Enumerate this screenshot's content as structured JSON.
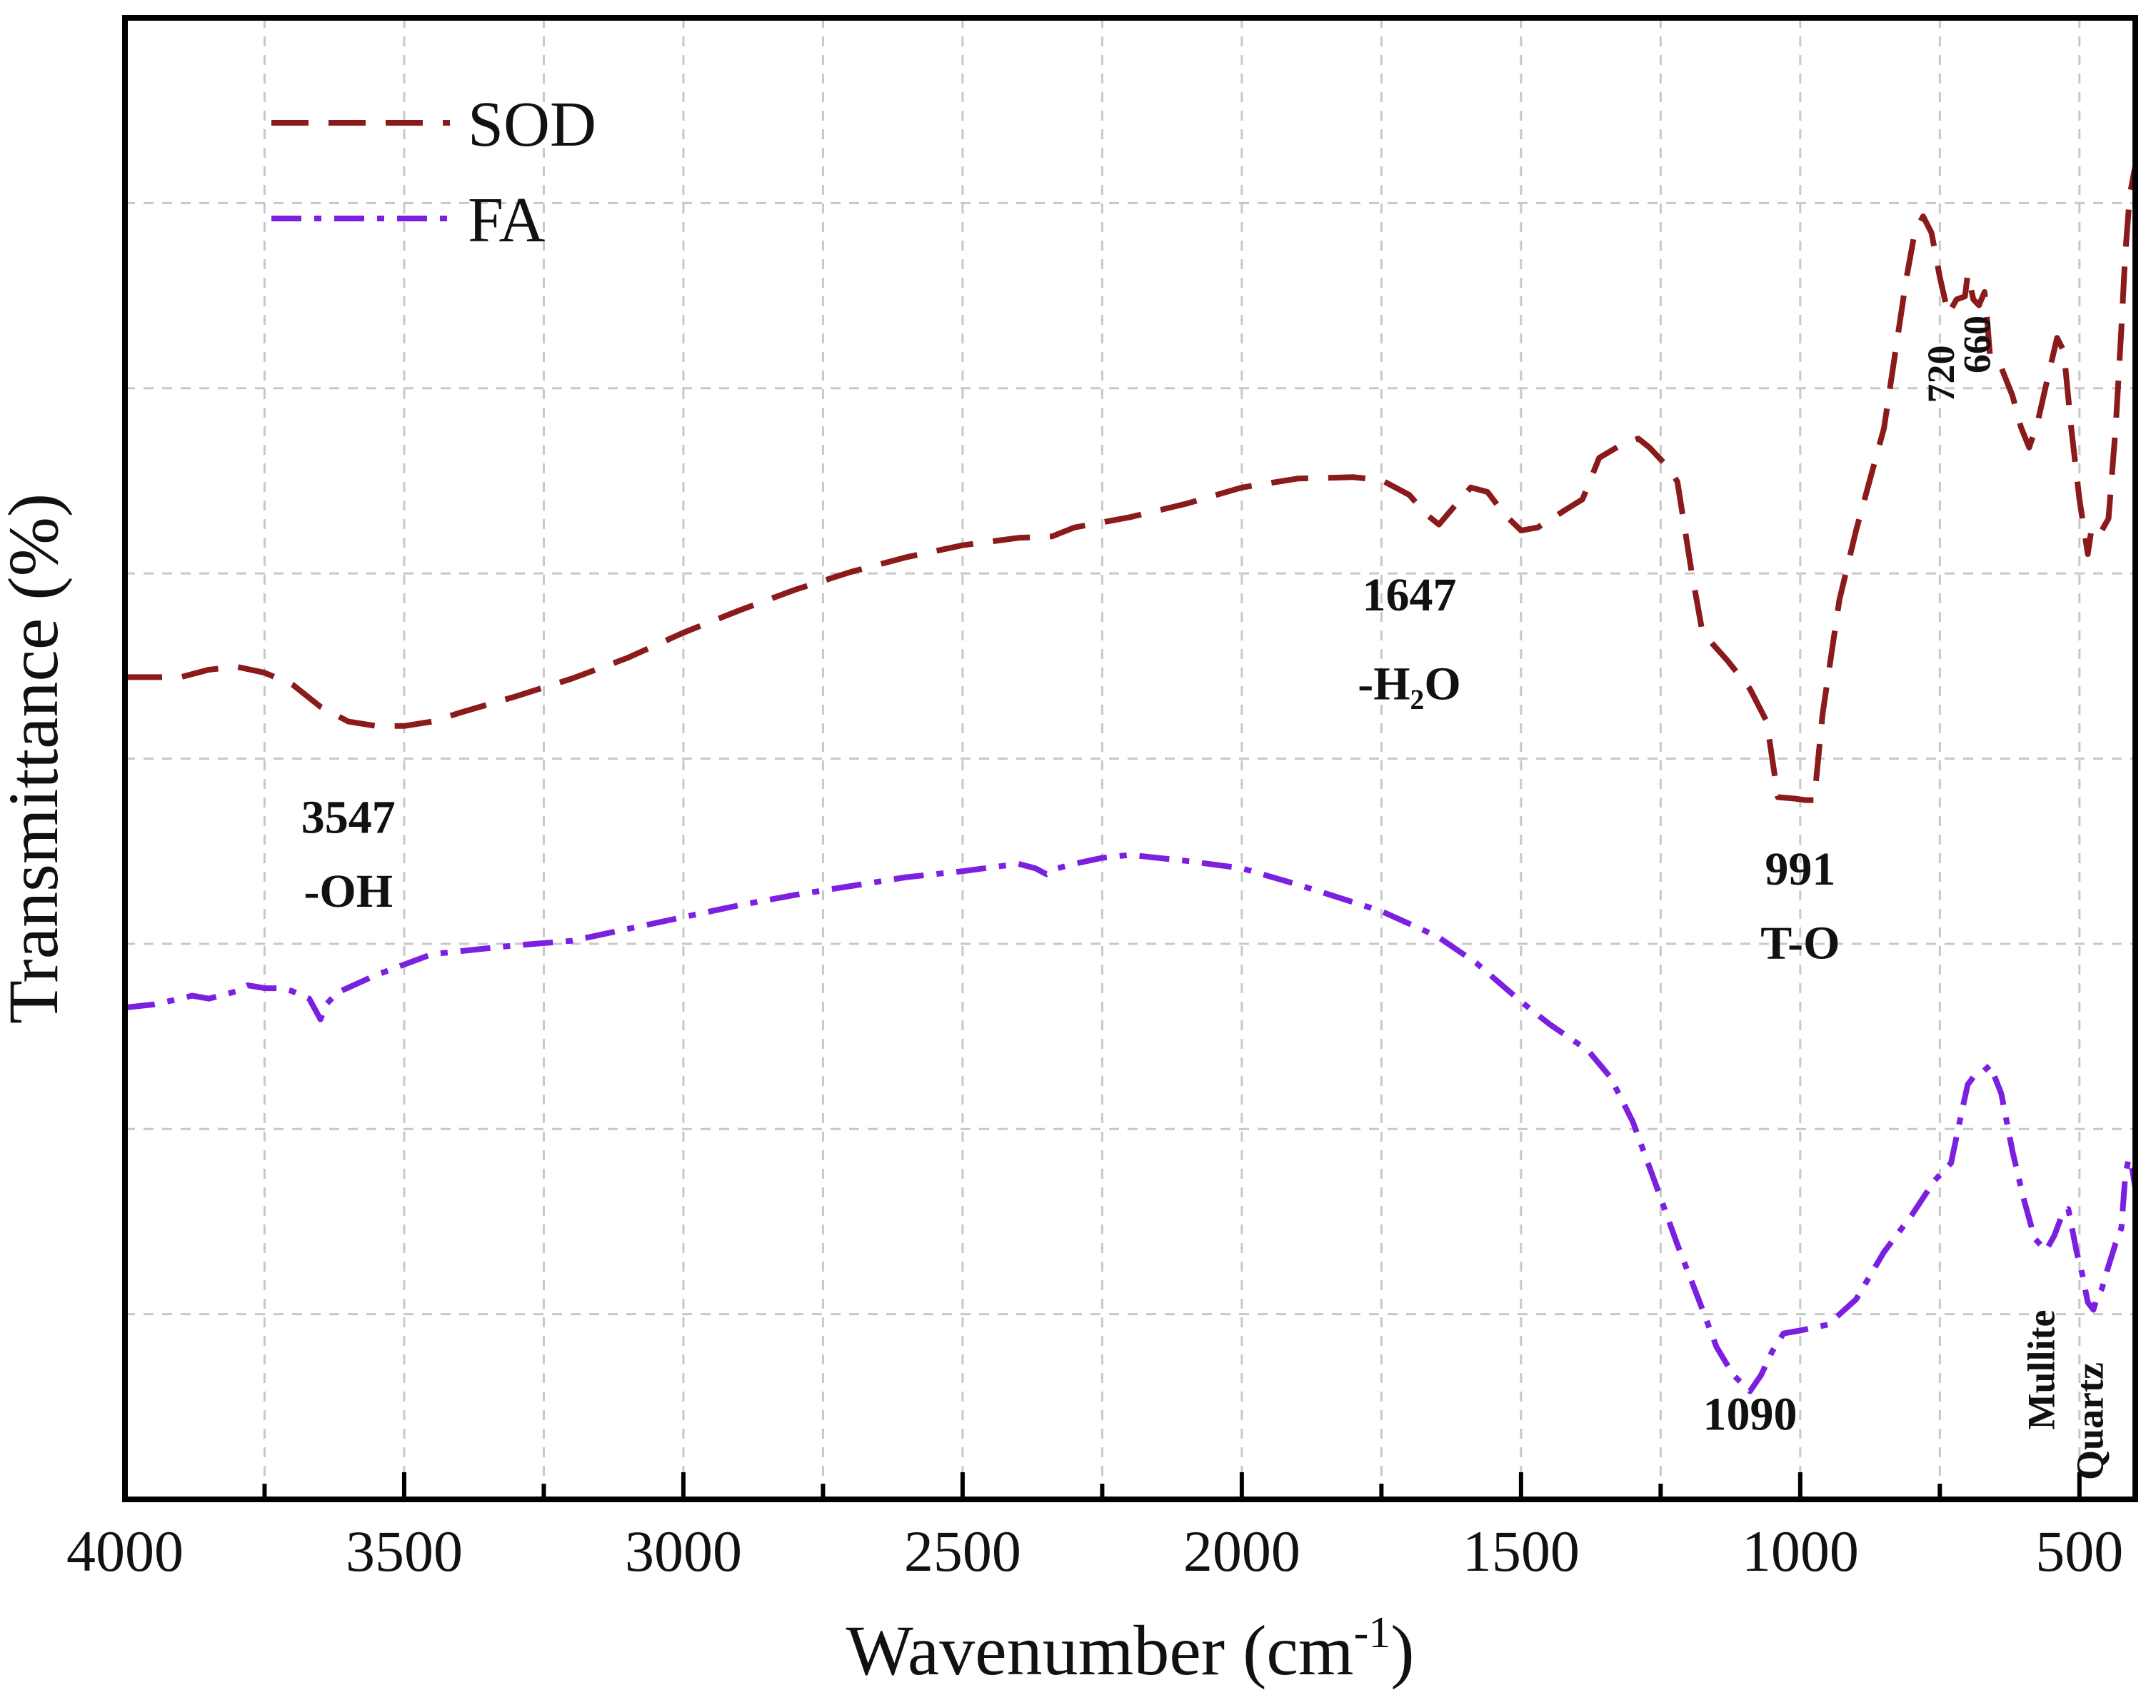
{
  "chart_data": {
    "type": "line",
    "title": "",
    "xlabel": "Wavenumber",
    "xlabel_unit_base": "cm",
    "xlabel_unit_exp": "-1",
    "ylabel": "Transmittance (%)",
    "xlim": [
      4000,
      400
    ],
    "ylim": [
      0,
      100
    ],
    "x_reversed": true,
    "grid": true,
    "legend_position": "top-left",
    "x_ticks": [
      "4000",
      "3500",
      "3000",
      "2500",
      "2000",
      "1500",
      "1000",
      "500"
    ],
    "x_tick_values": [
      4000,
      3500,
      3000,
      2500,
      2000,
      1500,
      1000,
      500
    ],
    "series": [
      {
        "name": "SOD",
        "color": "#8b1a1a",
        "dash": "dashed",
        "points": [
          [
            4000,
            55.5
          ],
          [
            3900,
            55.5
          ],
          [
            3850,
            56
          ],
          [
            3800,
            56.2
          ],
          [
            3750,
            55.8
          ],
          [
            3700,
            55
          ],
          [
            3650,
            53.5
          ],
          [
            3600,
            52.5
          ],
          [
            3550,
            52.2
          ],
          [
            3500,
            52.2
          ],
          [
            3450,
            52.5
          ],
          [
            3400,
            53.1
          ],
          [
            3300,
            54.2
          ],
          [
            3200,
            55.4
          ],
          [
            3100,
            56.8
          ],
          [
            3000,
            58.5
          ],
          [
            2900,
            60
          ],
          [
            2800,
            61.4
          ],
          [
            2700,
            62.6
          ],
          [
            2600,
            63.6
          ],
          [
            2500,
            64.4
          ],
          [
            2400,
            64.9
          ],
          [
            2340,
            65
          ],
          [
            2300,
            65.6
          ],
          [
            2200,
            66.3
          ],
          [
            2100,
            67.2
          ],
          [
            2000,
            68.3
          ],
          [
            1900,
            68.9
          ],
          [
            1800,
            69
          ],
          [
            1750,
            68.8
          ],
          [
            1700,
            67.8
          ],
          [
            1670,
            66.5
          ],
          [
            1647,
            65.8
          ],
          [
            1620,
            67
          ],
          [
            1590,
            68.3
          ],
          [
            1560,
            68
          ],
          [
            1530,
            66.5
          ],
          [
            1500,
            65.4
          ],
          [
            1470,
            65.6
          ],
          [
            1420,
            66.8
          ],
          [
            1390,
            67.5
          ],
          [
            1360,
            70.3
          ],
          [
            1320,
            71.2
          ],
          [
            1290,
            71.6
          ],
          [
            1270,
            71
          ],
          [
            1240,
            69.8
          ],
          [
            1220,
            68.7
          ],
          [
            1195,
            62.7
          ],
          [
            1175,
            58.5
          ],
          [
            1130,
            56.6
          ],
          [
            1090,
            54.7
          ],
          [
            1060,
            52.5
          ],
          [
            1040,
            47.4
          ],
          [
            1010,
            47.3
          ],
          [
            991,
            47.2
          ],
          [
            975,
            47.2
          ],
          [
            960,
            53
          ],
          [
            930,
            60.7
          ],
          [
            900,
            65.4
          ],
          [
            850,
            72.3
          ],
          [
            810,
            82.4
          ],
          [
            795,
            85.5
          ],
          [
            780,
            86.6
          ],
          [
            765,
            85.5
          ],
          [
            750,
            82.5
          ],
          [
            735,
            80
          ],
          [
            720,
            81
          ],
          [
            705,
            81.2
          ],
          [
            700,
            82.7
          ],
          [
            690,
            81
          ],
          [
            680,
            80.6
          ],
          [
            670,
            81.5
          ],
          [
            665,
            79.5
          ],
          [
            660,
            77.1
          ],
          [
            640,
            76.4
          ],
          [
            620,
            74.5
          ],
          [
            605,
            72.4
          ],
          [
            590,
            71
          ],
          [
            575,
            72.7
          ],
          [
            555,
            76
          ],
          [
            540,
            78.4
          ],
          [
            528,
            77.5
          ],
          [
            515,
            72.4
          ],
          [
            500,
            67.5
          ],
          [
            485,
            63.8
          ],
          [
            478,
            65.6
          ],
          [
            470,
            65.8
          ],
          [
            460,
            65.4
          ],
          [
            448,
            66.2
          ],
          [
            435,
            72.4
          ],
          [
            425,
            79
          ],
          [
            418,
            84
          ],
          [
            410,
            88
          ],
          [
            400,
            90
          ]
        ]
      },
      {
        "name": "FA",
        "color": "#7b1fe0",
        "dash": "dashdot",
        "points": [
          [
            4000,
            33.2
          ],
          [
            3950,
            33.4
          ],
          [
            3900,
            33.8
          ],
          [
            3880,
            34
          ],
          [
            3850,
            33.8
          ],
          [
            3800,
            34.3
          ],
          [
            3780,
            34.7
          ],
          [
            3750,
            34.5
          ],
          [
            3720,
            34.5
          ],
          [
            3700,
            34.3
          ],
          [
            3670,
            33.8
          ],
          [
            3650,
            32.4
          ],
          [
            3640,
            33.4
          ],
          [
            3620,
            34.2
          ],
          [
            3550,
            35.4
          ],
          [
            3450,
            36.8
          ],
          [
            3300,
            37.4
          ],
          [
            3200,
            37.7
          ],
          [
            3100,
            38.5
          ],
          [
            3000,
            39.3
          ],
          [
            2900,
            40.1
          ],
          [
            2800,
            40.8
          ],
          [
            2700,
            41.4
          ],
          [
            2600,
            42
          ],
          [
            2500,
            42.4
          ],
          [
            2400,
            42.9
          ],
          [
            2370,
            42.6
          ],
          [
            2350,
            42.2
          ],
          [
            2330,
            42.6
          ],
          [
            2300,
            42.9
          ],
          [
            2250,
            43.3
          ],
          [
            2200,
            43.5
          ],
          [
            2100,
            43.1
          ],
          [
            2000,
            42.6
          ],
          [
            1900,
            41.5
          ],
          [
            1750,
            39.7
          ],
          [
            1650,
            38
          ],
          [
            1580,
            36.2
          ],
          [
            1500,
            33.6
          ],
          [
            1450,
            32.1
          ],
          [
            1380,
            30.3
          ],
          [
            1340,
            28.5
          ],
          [
            1300,
            25.5
          ],
          [
            1260,
            21.4
          ],
          [
            1220,
            17.2
          ],
          [
            1180,
            13.3
          ],
          [
            1150,
            10.3
          ],
          [
            1120,
            8.4
          ],
          [
            1090,
            7.3
          ],
          [
            1070,
            8.4
          ],
          [
            1050,
            10
          ],
          [
            1030,
            11.2
          ],
          [
            1000,
            11.4
          ],
          [
            950,
            11.8
          ],
          [
            900,
            13.5
          ],
          [
            850,
            16.7
          ],
          [
            800,
            19.2
          ],
          [
            760,
            21.5
          ],
          [
            730,
            22.7
          ],
          [
            710,
            26.3
          ],
          [
            700,
            28
          ],
          [
            690,
            28.5
          ],
          [
            675,
            28.8
          ],
          [
            660,
            29.3
          ],
          [
            640,
            27.4
          ],
          [
            620,
            23.5
          ],
          [
            600,
            20.3
          ],
          [
            580,
            17.6
          ],
          [
            560,
            16.8
          ],
          [
            545,
            17.8
          ],
          [
            530,
            19.3
          ],
          [
            520,
            19.6
          ],
          [
            505,
            16.7
          ],
          [
            495,
            15.2
          ],
          [
            485,
            13.3
          ],
          [
            475,
            12.8
          ],
          [
            468,
            13.7
          ],
          [
            460,
            14.2
          ],
          [
            450,
            15.5
          ],
          [
            435,
            17.3
          ],
          [
            425,
            18.3
          ],
          [
            418,
            21.8
          ],
          [
            412,
            23
          ],
          [
            405,
            22.2
          ],
          [
            400,
            21
          ]
        ]
      }
    ],
    "annotations": [
      {
        "id": "ann-3547-num",
        "text": "3547",
        "x": 3600,
        "y": 45
      },
      {
        "id": "ann-3547-label",
        "text": "-OH",
        "x": 3600,
        "y": 40
      },
      {
        "id": "ann-1647-num",
        "text": "1647",
        "x": 1700,
        "y": 60
      },
      {
        "id": "ann-1647-label",
        "text": "-H₂O",
        "x": 1700,
        "y": 54
      },
      {
        "id": "ann-991-num",
        "text": "991",
        "x": 1000,
        "y": 41.5
      },
      {
        "id": "ann-991-label",
        "text": "T-O",
        "x": 1000,
        "y": 36.5
      },
      {
        "id": "ann-1090-num",
        "text": "1090",
        "x": 1090,
        "y": 4.7
      },
      {
        "id": "ann-720",
        "text": "720",
        "x": 725,
        "y": 74,
        "vertical": true
      },
      {
        "id": "ann-660",
        "text": "660",
        "x": 660,
        "y": 76,
        "vertical": true
      },
      {
        "id": "ann-mullite",
        "text": "Mullite",
        "x": 545,
        "y": 4.7,
        "vertical": true
      },
      {
        "id": "ann-quartz",
        "text": "Quartz",
        "x": 458,
        "y": 1.3,
        "vertical": true
      }
    ]
  }
}
